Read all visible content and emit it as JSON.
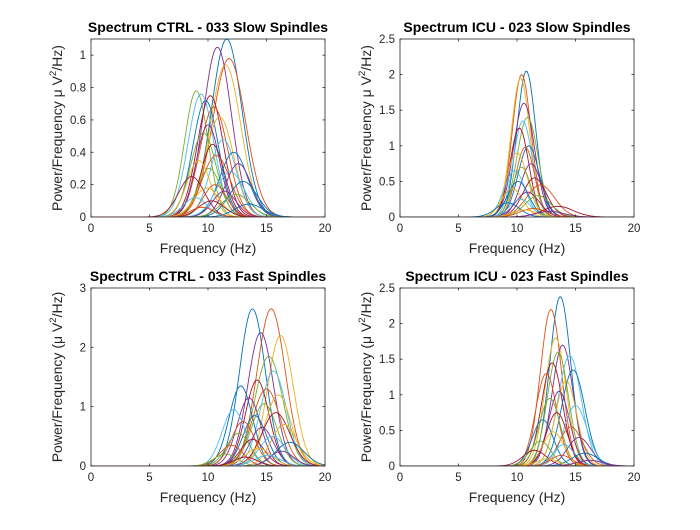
{
  "chart_data": [
    {
      "type": "line",
      "title": "Spectrum CTRL - 033 Slow Spindles",
      "xlabel": "Frequency (Hz)",
      "ylabel": "Power/Frequency μ V²/Hz)",
      "xlim": [
        0,
        20
      ],
      "ylim": [
        0,
        1.1
      ],
      "xticks": [
        0,
        5,
        10,
        15,
        20
      ],
      "yticks": [
        0,
        0.2,
        0.4,
        0.6,
        0.8,
        1
      ],
      "yticklabels": [
        "0",
        "0.2",
        "0.4",
        "0.6",
        "0.8",
        "1"
      ],
      "ylabel_parts": [
        "Power/Frequency ",
        "μ",
        " V",
        "2",
        "/Hz)"
      ],
      "grid": false,
      "box": true,
      "series_shape": "gaussian_peaks",
      "peaks": [
        [
          11.6,
          1.1,
          1.3
        ],
        [
          11.8,
          0.98,
          1.4
        ],
        [
          11.5,
          0.94,
          1.3
        ],
        [
          10.8,
          1.05,
          1.2
        ],
        [
          9.0,
          0.78,
          1.0
        ],
        [
          9.4,
          0.76,
          1.1
        ],
        [
          10.2,
          0.75,
          1.1
        ],
        [
          9.8,
          0.72,
          1.1
        ],
        [
          10.5,
          0.68,
          1.2
        ],
        [
          11.0,
          0.62,
          1.2
        ],
        [
          10.0,
          0.57,
          1.0
        ],
        [
          9.6,
          0.52,
          1.1
        ],
        [
          11.3,
          0.48,
          1.1
        ],
        [
          10.4,
          0.45,
          1.0
        ],
        [
          12.2,
          0.4,
          1.2
        ],
        [
          10.7,
          0.38,
          1.2
        ],
        [
          9.2,
          0.35,
          1.0
        ],
        [
          12.6,
          0.33,
          1.1
        ],
        [
          10.1,
          0.3,
          1.0
        ],
        [
          11.9,
          0.28,
          1.2
        ],
        [
          8.6,
          0.25,
          1.1
        ],
        [
          13.0,
          0.22,
          1.2
        ],
        [
          10.6,
          0.2,
          1.0
        ],
        [
          9.9,
          0.18,
          1.1
        ],
        [
          11.4,
          0.16,
          1.0
        ],
        [
          12.4,
          0.14,
          1.2
        ],
        [
          8.9,
          0.12,
          1.0
        ],
        [
          10.3,
          0.1,
          1.1
        ],
        [
          13.5,
          0.08,
          1.2
        ],
        [
          9.5,
          0.06,
          1.0
        ]
      ]
    },
    {
      "type": "line",
      "title": "Spectrum ICU - 023 Slow Spindles",
      "xlabel": "Frequency (Hz)",
      "ylabel": "Power/Frequency μ V²/Hz)",
      "xlim": [
        0,
        20
      ],
      "ylim": [
        0,
        2.5
      ],
      "xticks": [
        0,
        5,
        10,
        15,
        20
      ],
      "yticks": [
        0,
        0.5,
        1,
        1.5,
        2,
        2.5
      ],
      "yticklabels": [
        "0",
        "0.5",
        "1",
        "1.5",
        "2",
        "2.5"
      ],
      "ylabel_parts": [
        "Power/Frequency ",
        "μ",
        " V",
        "2",
        "/Hz)"
      ],
      "grid": false,
      "box": true,
      "series_shape": "gaussian_peaks",
      "peaks": [
        [
          10.8,
          2.05,
          0.8
        ],
        [
          10.4,
          2.0,
          0.8
        ],
        [
          10.3,
          1.95,
          0.8
        ],
        [
          10.6,
          1.6,
          0.9
        ],
        [
          10.9,
          1.4,
          0.9
        ],
        [
          10.5,
          1.35,
          0.8
        ],
        [
          10.2,
          1.25,
          0.8
        ],
        [
          11.0,
          1.0,
          0.9
        ],
        [
          10.7,
          0.98,
          0.8
        ],
        [
          10.0,
          0.9,
          0.9
        ],
        [
          11.2,
          0.75,
          0.9
        ],
        [
          10.4,
          0.7,
          0.8
        ],
        [
          9.8,
          0.65,
          0.9
        ],
        [
          11.5,
          0.55,
          1.0
        ],
        [
          10.1,
          0.5,
          0.9
        ],
        [
          12.0,
          0.45,
          1.2
        ],
        [
          9.6,
          0.4,
          0.9
        ],
        [
          10.9,
          0.35,
          1.0
        ],
        [
          11.8,
          0.3,
          1.1
        ],
        [
          10.3,
          0.25,
          0.9
        ],
        [
          13.5,
          0.15,
          1.3
        ],
        [
          9.2,
          0.2,
          1.0
        ],
        [
          11.4,
          0.12,
          1.1
        ],
        [
          10.6,
          0.1,
          1.0
        ],
        [
          12.8,
          0.08,
          1.2
        ]
      ]
    },
    {
      "type": "line",
      "title": "Spectrum CTRL - 033 Fast Spindles",
      "xlabel": "Frequency (Hz)",
      "ylabel": "Power/Frequency (μ V²/Hz)",
      "xlim": [
        0,
        20
      ],
      "ylim": [
        0,
        3
      ],
      "xticks": [
        0,
        5,
        10,
        15,
        20
      ],
      "yticks": [
        0,
        1,
        2,
        3
      ],
      "yticklabels": [
        "0",
        "1",
        "2",
        "3"
      ],
      "ylabel_parts": [
        "Power/Frequency (",
        "μ",
        " V",
        "2",
        "/Hz)"
      ],
      "grid": false,
      "box": true,
      "series_shape": "gaussian_peaks",
      "peaks": [
        [
          13.8,
          2.65,
          1.1
        ],
        [
          15.4,
          2.65,
          1.2
        ],
        [
          16.2,
          2.2,
          1.1
        ],
        [
          14.5,
          2.25,
          1.1
        ],
        [
          15.2,
          1.85,
          1.2
        ],
        [
          15.6,
          1.6,
          1.1
        ],
        [
          14.2,
          1.45,
          1.0
        ],
        [
          12.8,
          1.35,
          1.0
        ],
        [
          15.0,
          1.3,
          1.2
        ],
        [
          16.0,
          1.2,
          1.1
        ],
        [
          13.5,
          1.15,
          1.0
        ],
        [
          14.8,
          1.05,
          1.1
        ],
        [
          12.2,
          0.95,
          1.0
        ],
        [
          15.8,
          0.9,
          1.2
        ],
        [
          14.0,
          0.85,
          1.0
        ],
        [
          13.0,
          0.75,
          1.0
        ],
        [
          16.5,
          0.7,
          1.1
        ],
        [
          14.6,
          0.65,
          1.0
        ],
        [
          12.6,
          0.55,
          1.0
        ],
        [
          15.5,
          0.5,
          1.1
        ],
        [
          13.8,
          0.45,
          1.0
        ],
        [
          17.0,
          0.4,
          1.2
        ],
        [
          12.0,
          0.35,
          1.0
        ],
        [
          14.3,
          0.3,
          1.1
        ],
        [
          16.3,
          0.25,
          1.0
        ],
        [
          11.5,
          0.2,
          1.0
        ],
        [
          15.1,
          0.18,
          1.1
        ],
        [
          13.2,
          0.15,
          1.0
        ]
      ]
    },
    {
      "type": "line",
      "title": "Spectrum ICU - 023 Fast Spindles",
      "xlabel": "Frequency (Hz)",
      "ylabel": "Power/Frequency (μ V²/Hz)",
      "xlim": [
        0,
        20
      ],
      "ylim": [
        0,
        2.5
      ],
      "xticks": [
        0,
        5,
        10,
        15,
        20
      ],
      "yticks": [
        0,
        0.5,
        1,
        1.5,
        2,
        2.5
      ],
      "yticklabels": [
        "0",
        "0.5",
        "1",
        "1.5",
        "2",
        "2.5"
      ],
      "ylabel_parts": [
        "Power/Frequency (",
        "μ",
        " V",
        "2",
        "/Hz)"
      ],
      "grid": false,
      "box": true,
      "series_shape": "gaussian_peaks",
      "peaks": [
        [
          13.7,
          2.38,
          0.9
        ],
        [
          12.9,
          2.2,
          0.9
        ],
        [
          13.3,
          1.8,
          0.9
        ],
        [
          13.9,
          1.7,
          0.9
        ],
        [
          13.5,
          1.6,
          0.9
        ],
        [
          14.5,
          1.55,
          1.0
        ],
        [
          13.0,
          1.45,
          0.9
        ],
        [
          14.8,
          1.35,
          1.0
        ],
        [
          12.5,
          1.3,
          0.9
        ],
        [
          14.2,
          1.2,
          0.9
        ],
        [
          13.6,
          1.05,
          0.9
        ],
        [
          12.8,
          0.95,
          0.9
        ],
        [
          15.0,
          0.85,
          1.0
        ],
        [
          13.4,
          0.75,
          0.9
        ],
        [
          12.2,
          0.65,
          0.9
        ],
        [
          14.6,
          0.55,
          1.0
        ],
        [
          13.1,
          0.48,
          0.9
        ],
        [
          15.3,
          0.4,
          1.0
        ],
        [
          12.0,
          0.35,
          0.9
        ],
        [
          14.0,
          0.3,
          0.9
        ],
        [
          11.5,
          0.22,
          1.0
        ],
        [
          15.8,
          0.18,
          1.1
        ],
        [
          13.8,
          0.15,
          0.9
        ],
        [
          12.6,
          0.1,
          0.9
        ],
        [
          16.2,
          0.08,
          1.1
        ]
      ]
    }
  ]
}
